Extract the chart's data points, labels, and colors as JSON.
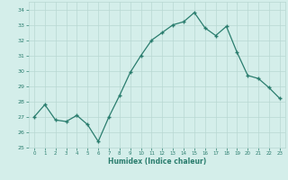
{
  "x": [
    0,
    1,
    2,
    3,
    4,
    5,
    6,
    7,
    8,
    9,
    10,
    11,
    12,
    13,
    14,
    15,
    16,
    17,
    18,
    19,
    20,
    21,
    22,
    23
  ],
  "y": [
    27.0,
    27.8,
    26.8,
    26.7,
    27.1,
    26.5,
    25.4,
    27.0,
    28.4,
    29.9,
    31.0,
    32.0,
    32.5,
    33.0,
    33.2,
    33.8,
    32.8,
    32.3,
    32.9,
    31.2,
    29.7,
    29.5,
    28.9,
    28.2
  ],
  "xlabel": "Humidex (Indice chaleur)",
  "ylim": [
    25,
    34.5
  ],
  "yticks": [
    25,
    26,
    27,
    28,
    29,
    30,
    31,
    32,
    33,
    34
  ],
  "xticks": [
    0,
    1,
    2,
    3,
    4,
    5,
    6,
    7,
    8,
    9,
    10,
    11,
    12,
    13,
    14,
    15,
    16,
    17,
    18,
    19,
    20,
    21,
    22,
    23
  ],
  "line_color": "#2a7d6e",
  "marker_color": "#2a7d6e",
  "bg_color": "#d4eeea",
  "grid_color": "#b8d8d2",
  "label_color": "#2a7d6e"
}
